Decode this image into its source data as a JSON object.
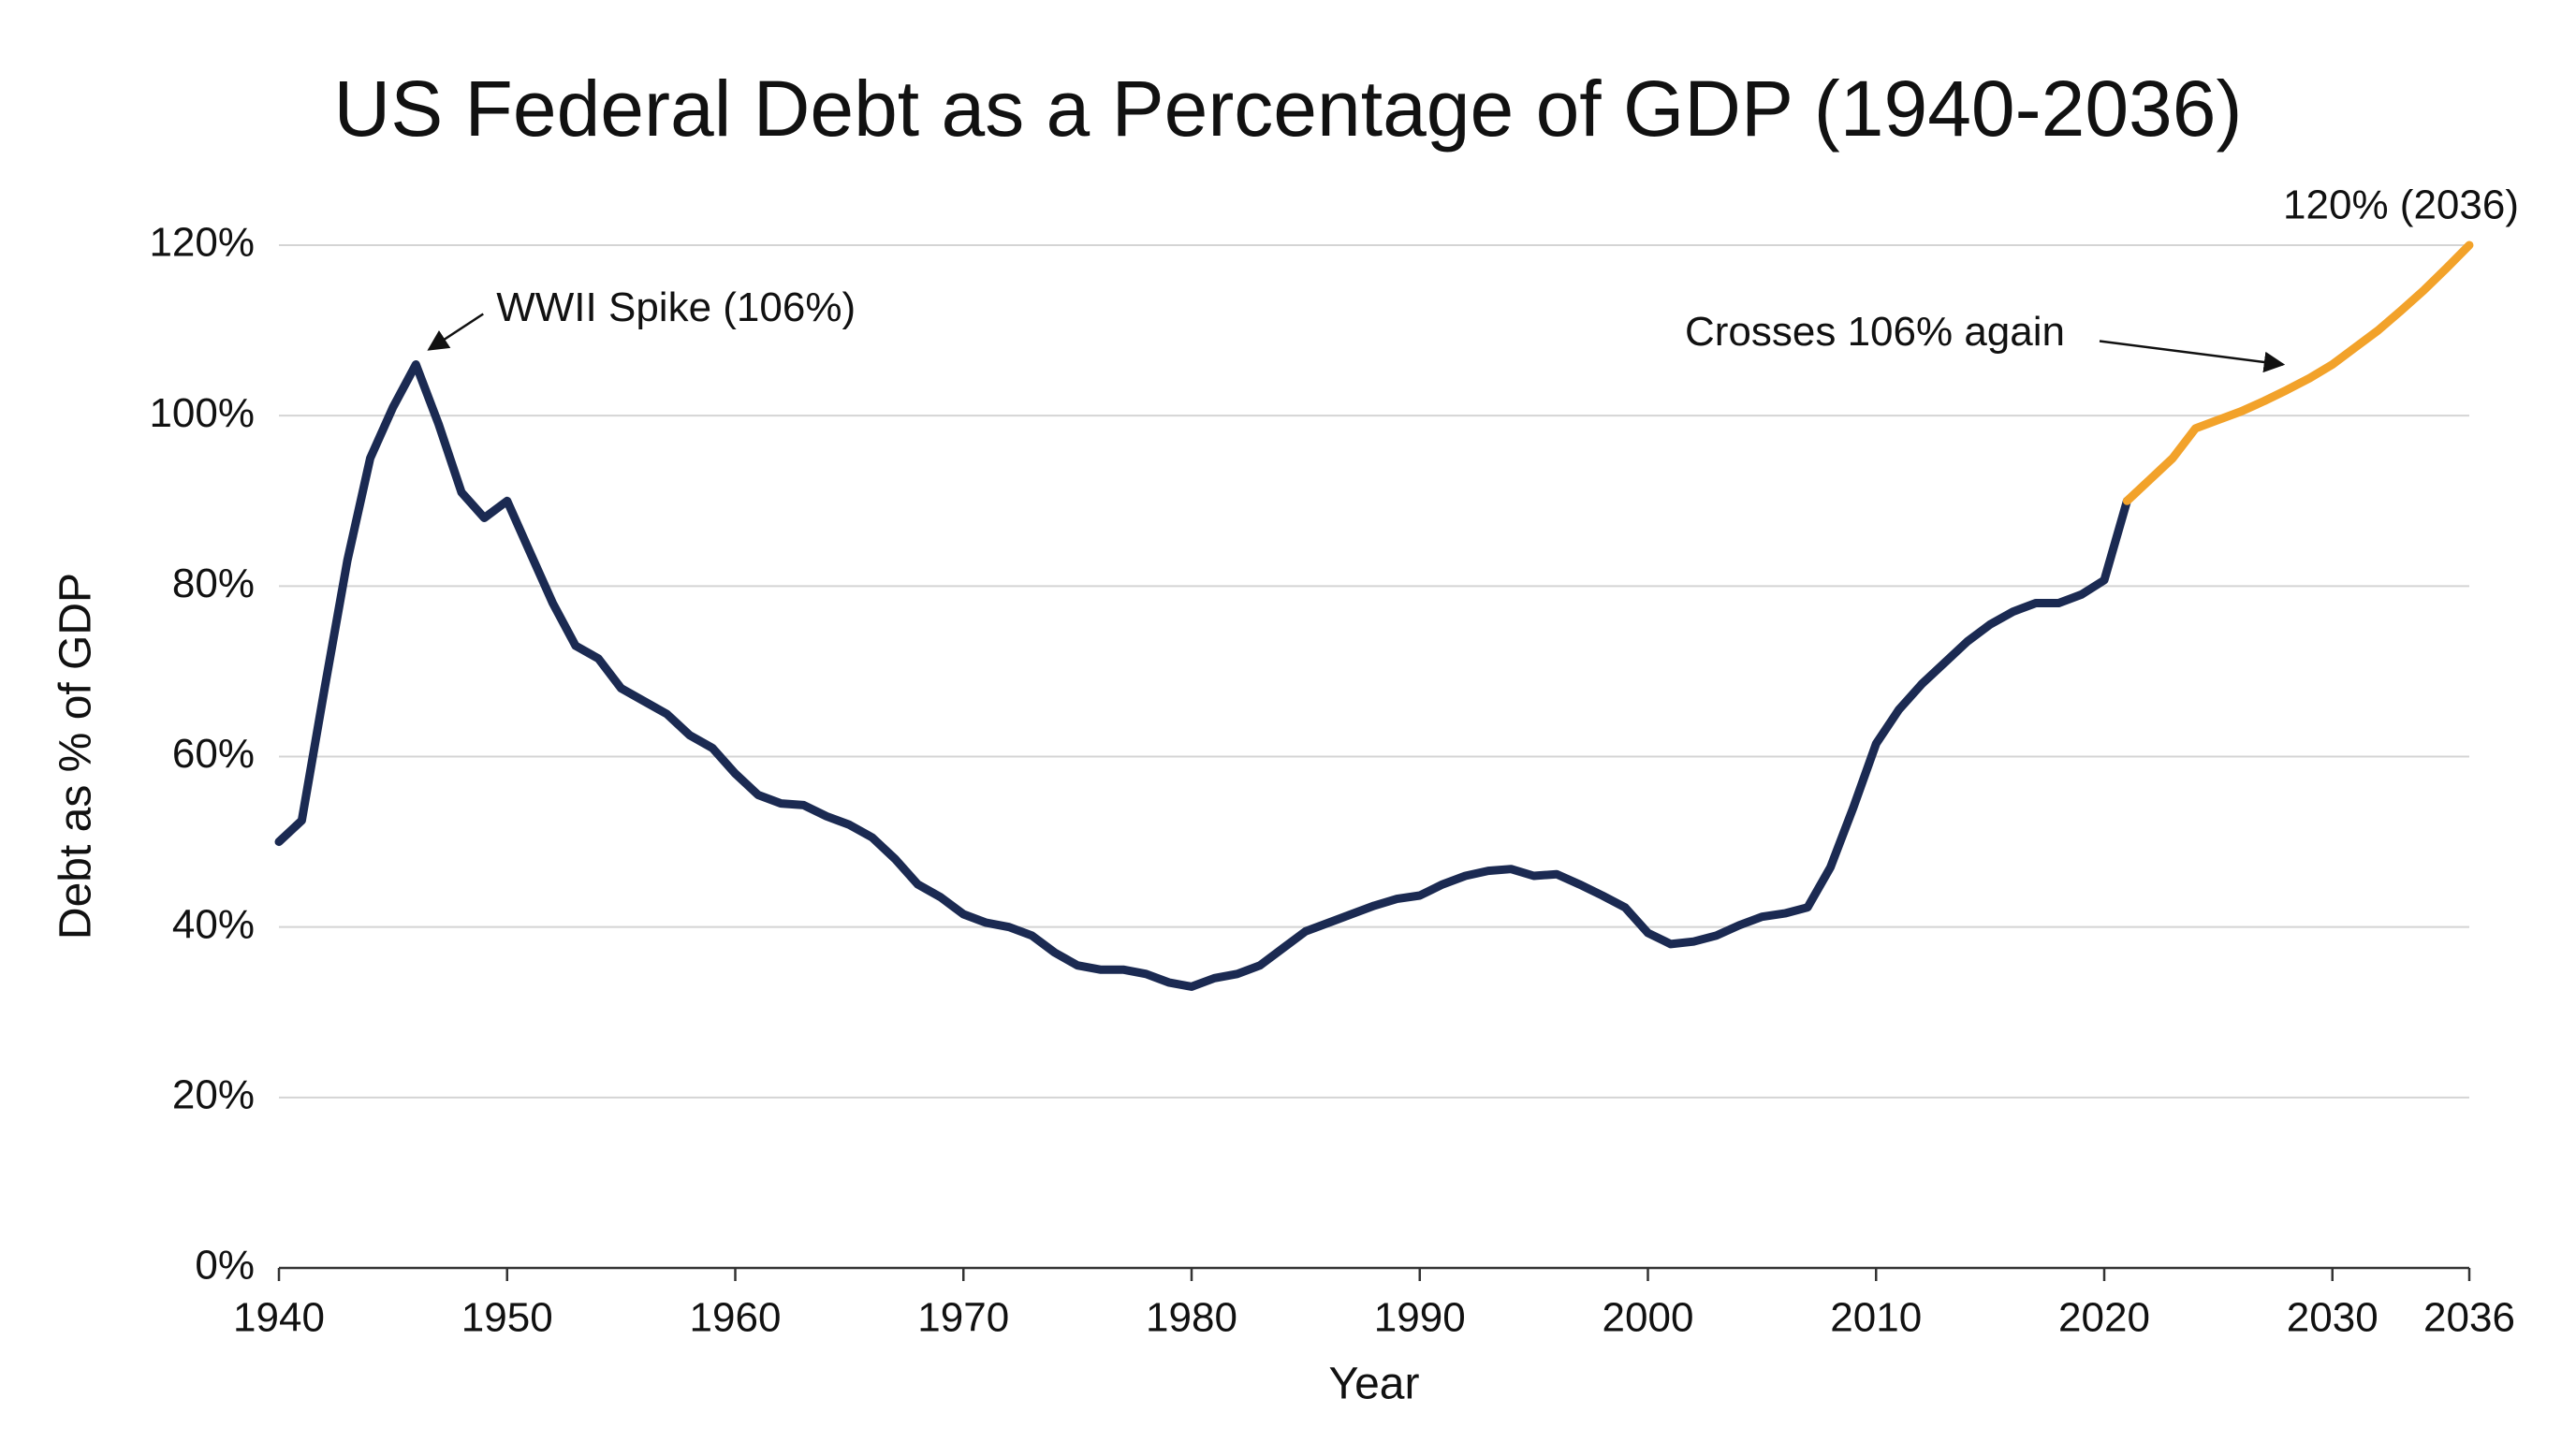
{
  "chart_data": {
    "type": "line",
    "title": "US Federal Debt as a Percentage of GDP (1940-2036)",
    "x_label": "Year",
    "y_label": "Debt as % of GDP",
    "xlim": [
      1940,
      2036
    ],
    "xticks": [
      1940,
      1950,
      1960,
      1970,
      1980,
      1990,
      2000,
      2010,
      2020,
      2030,
      2036
    ],
    "ylim": [
      0,
      120
    ],
    "yticks": [
      {
        "value": 0,
        "label": "0%"
      },
      {
        "value": 20,
        "label": "20%"
      },
      {
        "value": 40,
        "label": "40%"
      },
      {
        "value": 60,
        "label": "60%"
      },
      {
        "value": 80,
        "label": "80%"
      },
      {
        "value": 100,
        "label": "100%"
      },
      {
        "value": 120,
        "label": "120%"
      }
    ],
    "grid": true,
    "series": [
      {
        "color": "#1b2a52",
        "x": [
          1940,
          1941,
          1942,
          1943,
          1944,
          1945,
          1946,
          1947,
          1948,
          1949,
          1950,
          1951,
          1952,
          1953,
          1954,
          1955,
          1956,
          1957,
          1958,
          1959,
          1960,
          1961,
          1962,
          1963,
          1964,
          1965,
          1966,
          1967,
          1968,
          1969,
          1970,
          1971,
          1972,
          1973,
          1974,
          1975,
          1976,
          1977,
          1978,
          1979,
          1980,
          1981,
          1982,
          1983,
          1984,
          1985,
          1986,
          1987,
          1988,
          1989,
          1990,
          1991,
          1992,
          1993,
          1994,
          1995,
          1996,
          1997,
          1998,
          1999,
          2000,
          2001,
          2002,
          2003,
          2004,
          2005,
          2006,
          2007,
          2008,
          2009,
          2010,
          2011,
          2012,
          2013,
          2014,
          2015,
          2016,
          2017,
          2018,
          2019,
          2020,
          2021
        ],
        "values": [
          50,
          52.5,
          68,
          83,
          95,
          101,
          106,
          99,
          91,
          88,
          90,
          84,
          78,
          73,
          71.5,
          68,
          66.5,
          65,
          62.5,
          61,
          58,
          55.5,
          54.5,
          54.3,
          53,
          52,
          50.5,
          48,
          45,
          43.5,
          41.5,
          40.5,
          40,
          39,
          37,
          35.5,
          35,
          35,
          34.5,
          33.5,
          33,
          34,
          34.5,
          35.5,
          37.5,
          39.5,
          40.5,
          41.5,
          42.5,
          43.3,
          43.7,
          45,
          46,
          46.6,
          46.8,
          46,
          46.2,
          45,
          43.7,
          42.3,
          39.3,
          38,
          38.3,
          39,
          40.2,
          41.2,
          41.6,
          42.3,
          47,
          54,
          61.5,
          65.5,
          68.5,
          71,
          73.5,
          75.5,
          77,
          78,
          78,
          79,
          80.7,
          90
        ]
      },
      {
        "color": "#f2a22a",
        "x": [
          2021,
          2022,
          2023,
          2024,
          2025,
          2026,
          2027,
          2028,
          2029,
          2030,
          2031,
          2032,
          2033,
          2034,
          2035,
          2036
        ],
        "values": [
          90,
          92.5,
          95,
          98.5,
          99.5,
          100.5,
          101.7,
          103,
          104.4,
          106,
          108,
          110,
          112.3,
          114.7,
          117.3,
          120
        ]
      }
    ],
    "annotations": [
      {
        "text": "WWII Spike (106%)",
        "x": 1946,
        "y": 106,
        "arrow": true
      },
      {
        "text": "Crosses 106% again",
        "x": 2028,
        "y": 106,
        "arrow": true
      },
      {
        "text": "120% (2036)",
        "x": 2036,
        "y": 120,
        "arrow": false
      }
    ]
  }
}
